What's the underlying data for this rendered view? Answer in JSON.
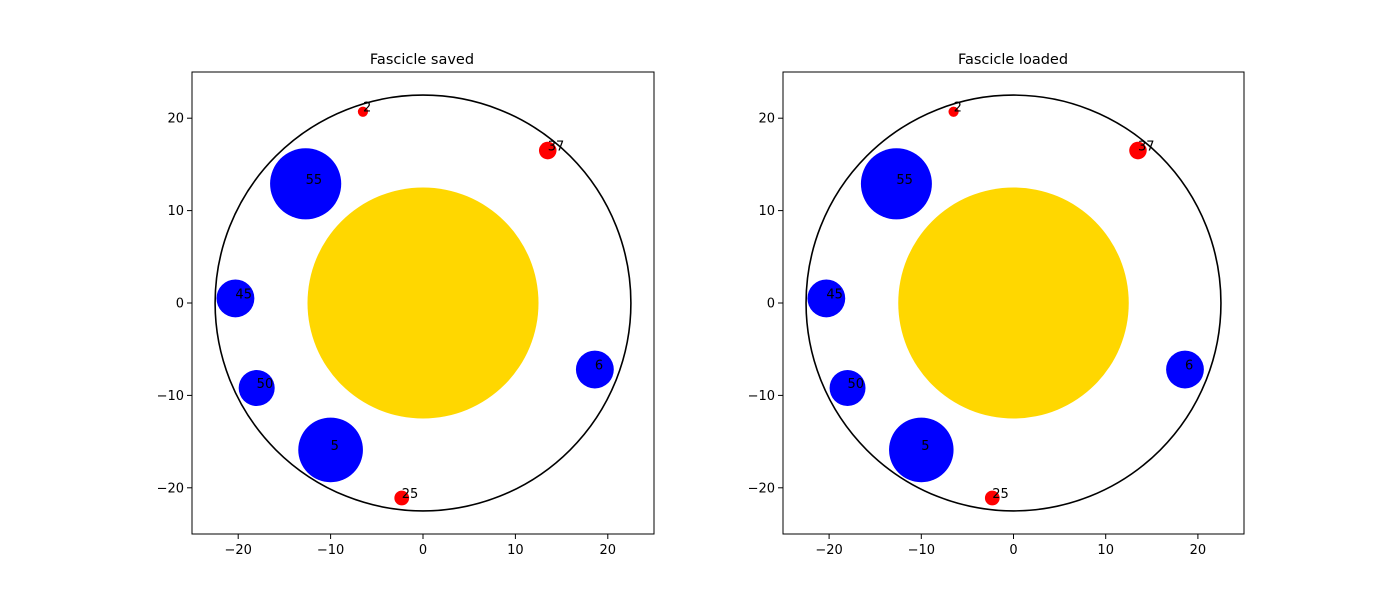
{
  "chart_data": [
    {
      "type": "scatter",
      "title": "Fascicle saved",
      "xlabel": "",
      "ylabel": "",
      "xlim": [
        -25,
        25
      ],
      "ylim": [
        -25,
        25
      ],
      "xticks": [
        -20,
        -10,
        0,
        10,
        20
      ],
      "yticks": [
        -20,
        -10,
        0,
        10,
        20
      ],
      "xtick_labels": [
        "−20",
        "−10",
        "0",
        "10",
        "20"
      ],
      "ytick_labels": [
        "−20",
        "−10",
        "0",
        "10",
        "20"
      ],
      "grid": false,
      "outer_boundary": {
        "x": 0,
        "y": 0,
        "r": 22.5,
        "color": "#000000"
      },
      "inner_circle": {
        "x": 0,
        "y": 0,
        "r": 12.5,
        "color": "#FFD700"
      },
      "circles": [
        {
          "label": "2",
          "x": -6.5,
          "y": 20.7,
          "r": 0.55,
          "color": "#FF0000"
        },
        {
          "label": "37",
          "x": 13.5,
          "y": 16.5,
          "r": 0.95,
          "color": "#FF0000"
        },
        {
          "label": "55",
          "x": -12.7,
          "y": 12.9,
          "r": 3.85,
          "color": "#0000FF"
        },
        {
          "label": "45",
          "x": -20.3,
          "y": 0.5,
          "r": 2.05,
          "color": "#0000FF"
        },
        {
          "label": "6",
          "x": 18.6,
          "y": -7.2,
          "r": 2.05,
          "color": "#0000FF"
        },
        {
          "label": "50",
          "x": -18.0,
          "y": -9.2,
          "r": 1.95,
          "color": "#0000FF"
        },
        {
          "label": "5",
          "x": -10.0,
          "y": -15.9,
          "r": 3.5,
          "color": "#0000FF"
        },
        {
          "label": "25",
          "x": -2.3,
          "y": -21.1,
          "r": 0.8,
          "color": "#FF0000"
        }
      ]
    },
    {
      "type": "scatter",
      "title": "Fascicle loaded",
      "xlabel": "",
      "ylabel": "",
      "xlim": [
        -25,
        25
      ],
      "ylim": [
        -25,
        25
      ],
      "xticks": [
        -20,
        -10,
        0,
        10,
        20
      ],
      "yticks": [
        -20,
        -10,
        0,
        10,
        20
      ],
      "xtick_labels": [
        "−20",
        "−10",
        "0",
        "10",
        "20"
      ],
      "ytick_labels": [
        "−20",
        "−10",
        "0",
        "10",
        "20"
      ],
      "grid": false,
      "outer_boundary": {
        "x": 0,
        "y": 0,
        "r": 22.5,
        "color": "#000000"
      },
      "inner_circle": {
        "x": 0,
        "y": 0,
        "r": 12.5,
        "color": "#FFD700"
      },
      "circles": [
        {
          "label": "2",
          "x": -6.5,
          "y": 20.7,
          "r": 0.55,
          "color": "#FF0000"
        },
        {
          "label": "37",
          "x": 13.5,
          "y": 16.5,
          "r": 0.95,
          "color": "#FF0000"
        },
        {
          "label": "55",
          "x": -12.7,
          "y": 12.9,
          "r": 3.85,
          "color": "#0000FF"
        },
        {
          "label": "45",
          "x": -20.3,
          "y": 0.5,
          "r": 2.05,
          "color": "#0000FF"
        },
        {
          "label": "6",
          "x": 18.6,
          "y": -7.2,
          "r": 2.05,
          "color": "#0000FF"
        },
        {
          "label": "50",
          "x": -18.0,
          "y": -9.2,
          "r": 1.95,
          "color": "#0000FF"
        },
        {
          "label": "5",
          "x": -10.0,
          "y": -15.9,
          "r": 3.5,
          "color": "#0000FF"
        },
        {
          "label": "25",
          "x": -2.3,
          "y": -21.1,
          "r": 0.8,
          "color": "#FF0000"
        }
      ]
    }
  ]
}
